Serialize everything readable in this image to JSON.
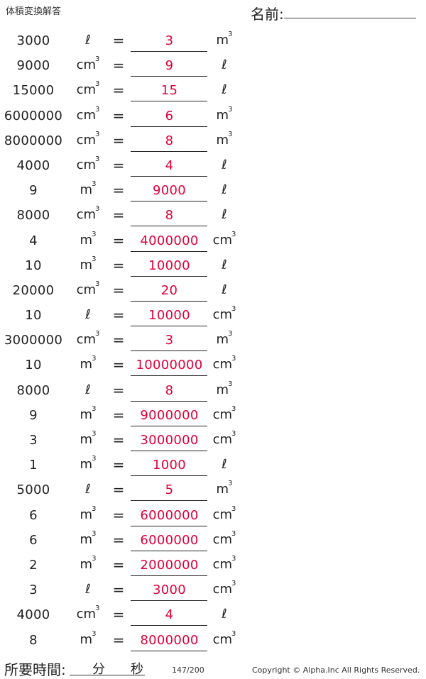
{
  "header": {
    "title": "体積変換解答",
    "name_label": "名前:"
  },
  "rows": [
    {
      "value": "3000",
      "from": "ℓ",
      "answer": "3",
      "to": "m3"
    },
    {
      "value": "9000",
      "from": "cm3",
      "answer": "9",
      "to": "ℓ"
    },
    {
      "value": "15000",
      "from": "cm3",
      "answer": "15",
      "to": "ℓ"
    },
    {
      "value": "6000000",
      "from": "cm3",
      "answer": "6",
      "to": "m3"
    },
    {
      "value": "8000000",
      "from": "cm3",
      "answer": "8",
      "to": "m3"
    },
    {
      "value": "4000",
      "from": "cm3",
      "answer": "4",
      "to": "ℓ"
    },
    {
      "value": "9",
      "from": "m3",
      "answer": "9000",
      "to": "ℓ"
    },
    {
      "value": "8000",
      "from": "cm3",
      "answer": "8",
      "to": "ℓ"
    },
    {
      "value": "4",
      "from": "m3",
      "answer": "4000000",
      "to": "cm3"
    },
    {
      "value": "10",
      "from": "m3",
      "answer": "10000",
      "to": "ℓ"
    },
    {
      "value": "20000",
      "from": "cm3",
      "answer": "20",
      "to": "ℓ"
    },
    {
      "value": "10",
      "from": "ℓ",
      "answer": "10000",
      "to": "cm3"
    },
    {
      "value": "3000000",
      "from": "cm3",
      "answer": "3",
      "to": "m3"
    },
    {
      "value": "10",
      "from": "m3",
      "answer": "10000000",
      "to": "cm3"
    },
    {
      "value": "8000",
      "from": "ℓ",
      "answer": "8",
      "to": "m3"
    },
    {
      "value": "9",
      "from": "m3",
      "answer": "9000000",
      "to": "cm3"
    },
    {
      "value": "3",
      "from": "m3",
      "answer": "3000000",
      "to": "cm3"
    },
    {
      "value": "1",
      "from": "m3",
      "answer": "1000",
      "to": "ℓ"
    },
    {
      "value": "5000",
      "from": "ℓ",
      "answer": "5",
      "to": "m3"
    },
    {
      "value": "6",
      "from": "m3",
      "answer": "6000000",
      "to": "cm3"
    },
    {
      "value": "6",
      "from": "m3",
      "answer": "6000000",
      "to": "cm3"
    },
    {
      "value": "2",
      "from": "m3",
      "answer": "2000000",
      "to": "cm3"
    },
    {
      "value": "3",
      "from": "ℓ",
      "answer": "3000",
      "to": "cm3"
    },
    {
      "value": "4000",
      "from": "cm3",
      "answer": "4",
      "to": "ℓ"
    },
    {
      "value": "8",
      "from": "m3",
      "answer": "8000000",
      "to": "cm3"
    }
  ],
  "equals_sign": "=",
  "footer": {
    "time_label": "所要時間:",
    "minutes_label": "分",
    "seconds_label": "秒",
    "page": "147/200",
    "copyright": "Copyright © Alpha.Inc All Rights Reserved."
  },
  "colors": {
    "answer": "#e0003a",
    "text": "#222222"
  }
}
